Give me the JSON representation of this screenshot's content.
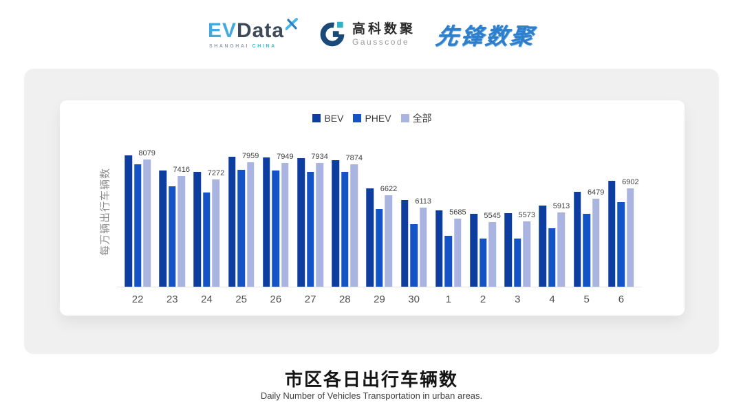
{
  "header": {
    "evdata": {
      "ev": "EV",
      "data": "Data",
      "sub_left": "SHANGHAI",
      "sub_right": "CHINA"
    },
    "gausscode": {
      "cn": "高科数聚",
      "en": "Gausscode"
    },
    "xianfeng": {
      "text": "先锋数聚"
    }
  },
  "chart_data": {
    "type": "bar",
    "title": "市区各日出行车辆数",
    "ylabel": "每万辆出行车辆数",
    "categories": [
      "22",
      "23",
      "24",
      "25",
      "26",
      "27",
      "28",
      "29",
      "30",
      "1",
      "2",
      "3",
      "4",
      "5",
      "6"
    ],
    "series": [
      {
        "name": "BEV",
        "key": "bev",
        "color": "#0e3da0",
        "values": [
          8240,
          7640,
          7570,
          8180,
          8160,
          8150,
          8060,
          6900,
          6430,
          6010,
          5860,
          5900,
          6200,
          6770,
          7220
        ]
      },
      {
        "name": "PHEV",
        "key": "phev",
        "color": "#1453c6",
        "values": [
          7880,
          6980,
          6750,
          7650,
          7630,
          7590,
          7570,
          6070,
          5460,
          4960,
          4850,
          4850,
          5290,
          5880,
          6340
        ]
      },
      {
        "name": "全部",
        "key": "all",
        "color": "#aab4e0",
        "labeled": true,
        "values": [
          8079,
          7416,
          7272,
          7959,
          7949,
          7934,
          7874,
          6622,
          6113,
          5685,
          5545,
          5573,
          5913,
          6479,
          6902
        ]
      }
    ],
    "data_labels_series": "全部",
    "ylim": [
      2900,
      8500
    ],
    "legend_position": "top",
    "grid": false,
    "axis_line_color": "#e4e4e4"
  },
  "footer": {
    "title": "市区各日出行车辆数",
    "subtitle": "Daily Number of Vehicles Transportation in urban areas."
  }
}
